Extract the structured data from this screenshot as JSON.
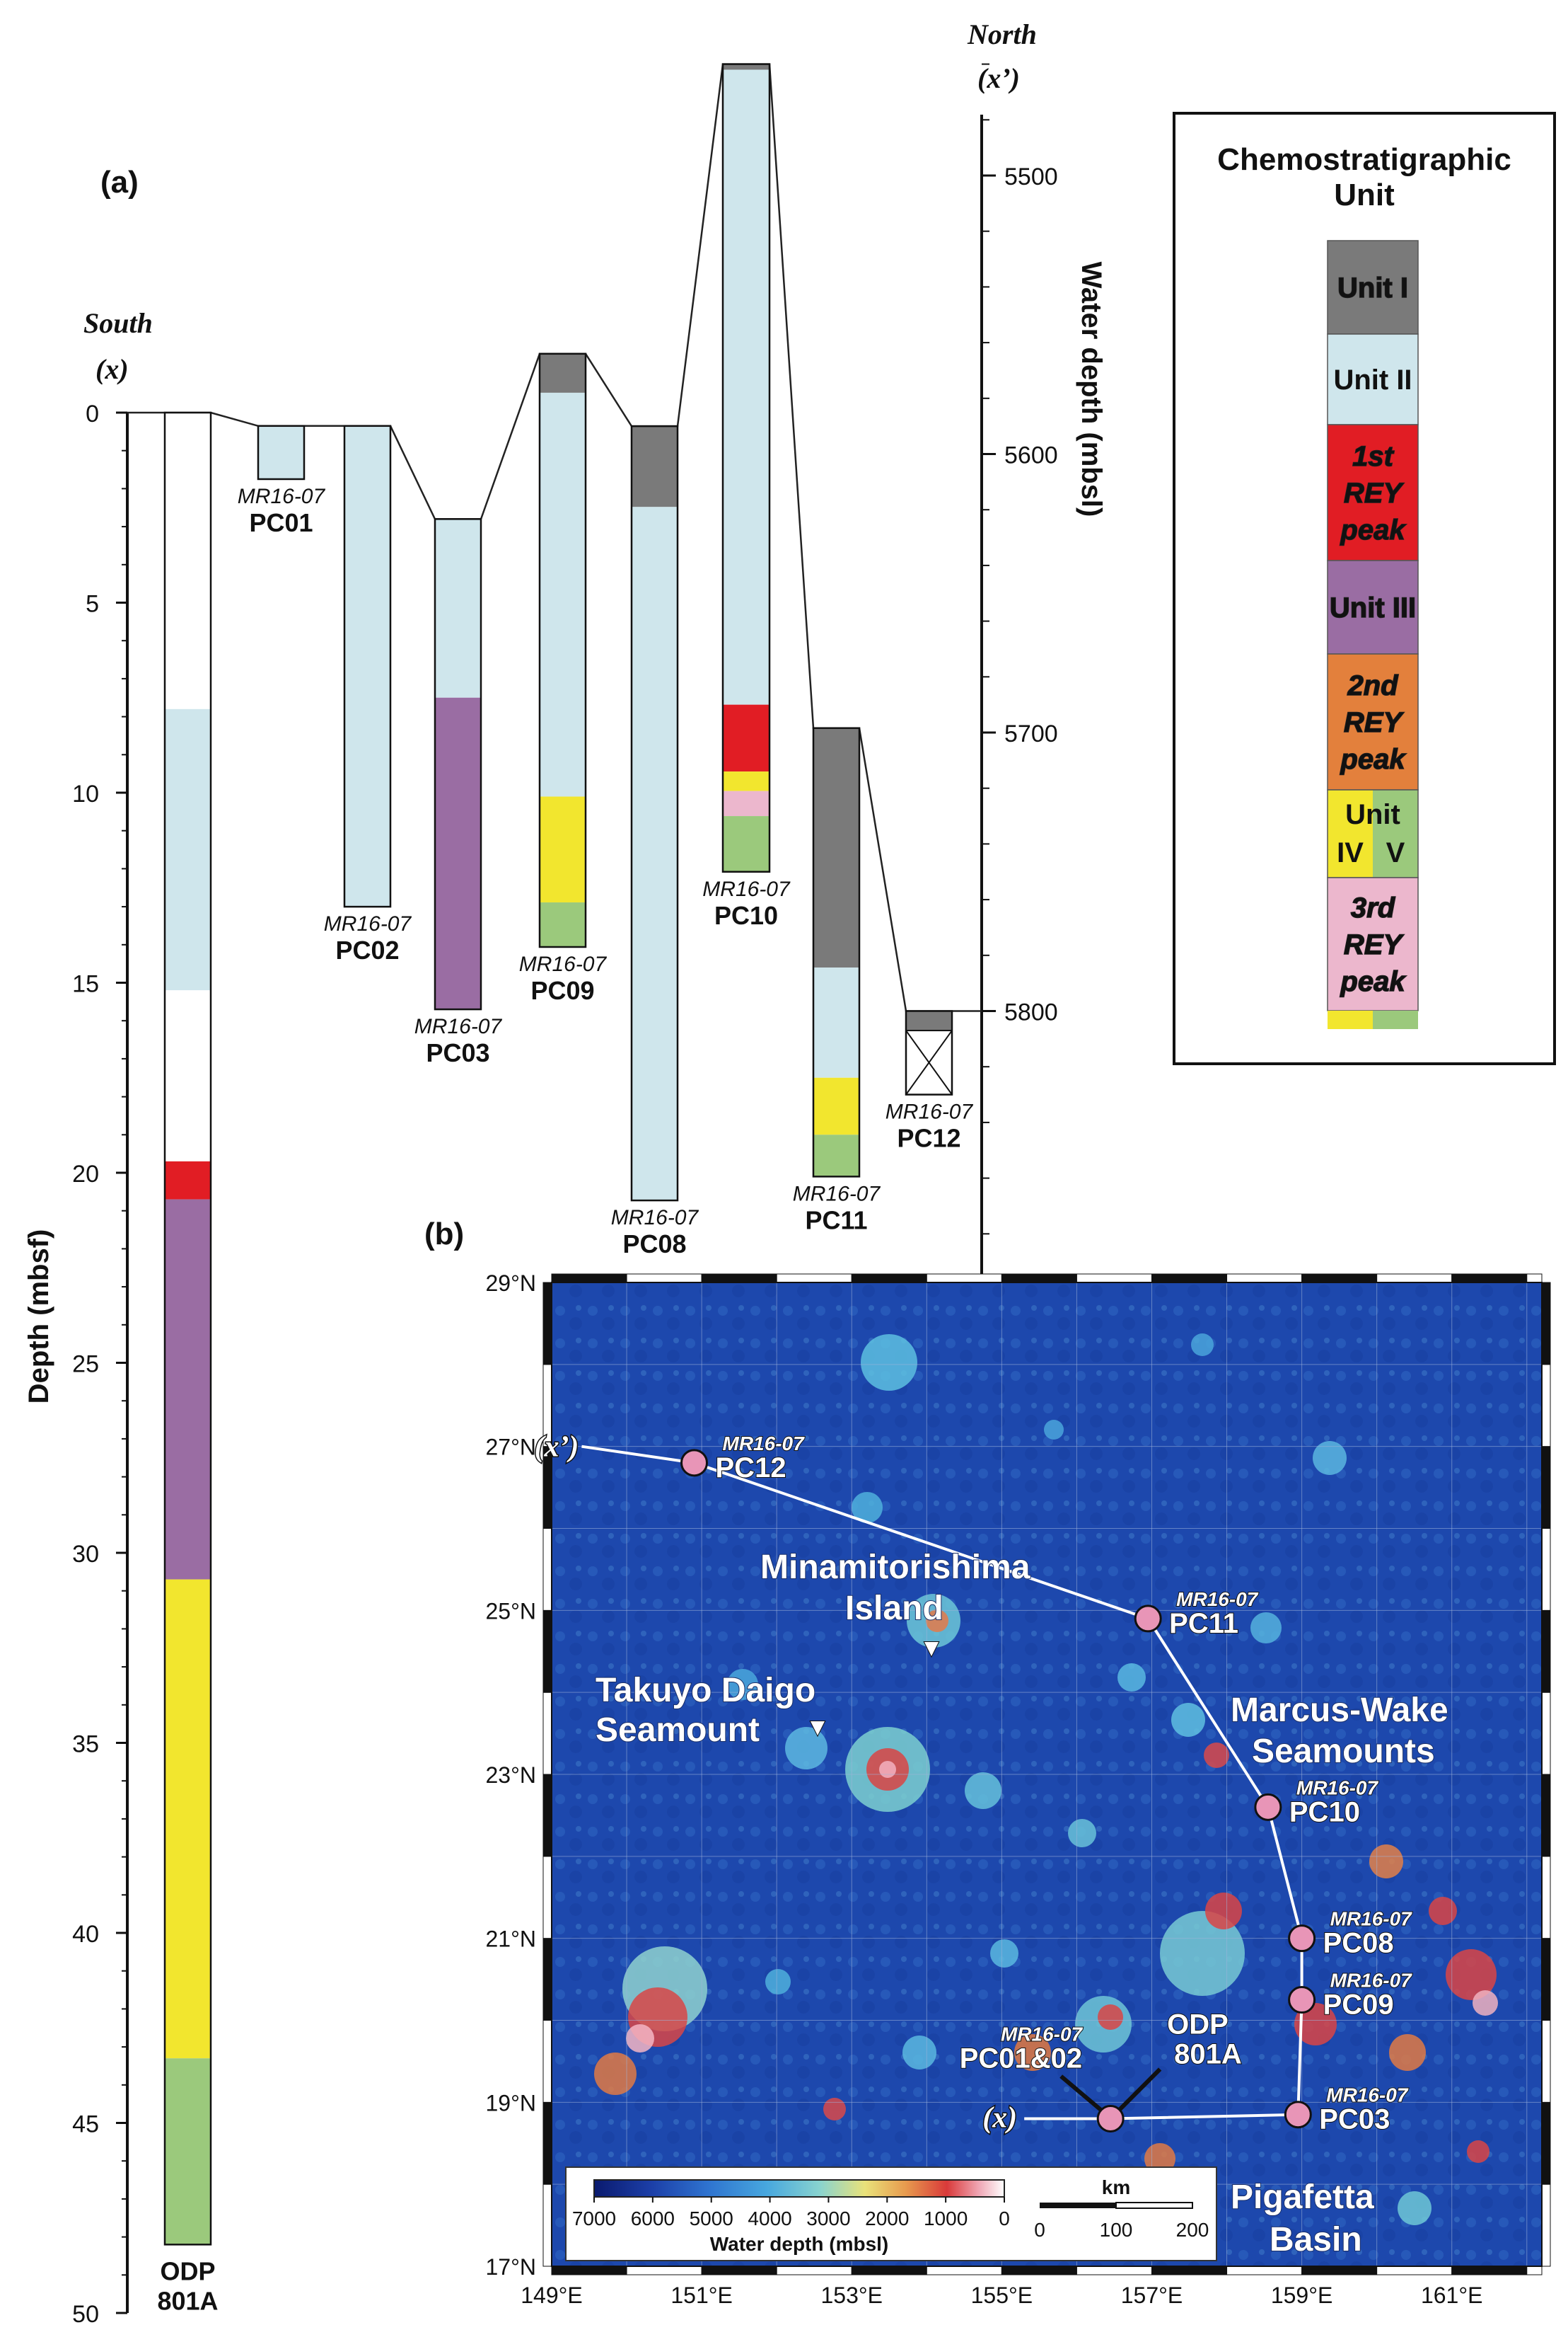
{
  "panel_a": {
    "label": "(a)",
    "south": "South",
    "south_sym": "(x)",
    "north": "North",
    "north_sym": "(x’)",
    "left_axis_title": "Depth (mbsf)",
    "right_axis_title": "Water depth (mbsl)",
    "depth_ticks": [
      "0",
      "5",
      "10",
      "15",
      "20",
      "25",
      "30",
      "35",
      "40",
      "45",
      "50"
    ],
    "water_ticks": [
      "5500",
      "5600",
      "5700",
      "5800",
      "5900"
    ],
    "cruise": "MR16-07",
    "cores": [
      {
        "name": "ODP 801A",
        "name_line1": "ODP",
        "name_line2": "801A",
        "prefix": "",
        "top": 0,
        "bottom": 48.2,
        "units": [
          {
            "unit": "none",
            "from": 0,
            "to": 7.8
          },
          {
            "unit": "II",
            "from": 7.8,
            "to": 15.2
          },
          {
            "unit": "none",
            "from": 15.2,
            "to": 19.7
          },
          {
            "unit": "REY1",
            "from": 19.7,
            "to": 20.7
          },
          {
            "unit": "III",
            "from": 20.7,
            "to": 30.7
          },
          {
            "unit": "IV",
            "from": 30.7,
            "to": 43.3
          },
          {
            "unit": "V",
            "from": 43.3,
            "to": 48.2
          }
        ]
      },
      {
        "name": "PC01",
        "prefix": "MR16-07",
        "top": 0.35,
        "bottom": 1.75,
        "units": [
          {
            "unit": "II",
            "from": 0.35,
            "to": 1.75
          }
        ]
      },
      {
        "name": "PC02",
        "prefix": "MR16-07",
        "top": 0.35,
        "bottom": 13.0,
        "units": [
          {
            "unit": "II",
            "from": 0.35,
            "to": 13.0
          }
        ]
      },
      {
        "name": "PC03",
        "prefix": "MR16-07",
        "top": 2.8,
        "bottom": 15.7,
        "units": [
          {
            "unit": "II",
            "from": 2.8,
            "to": 7.5
          },
          {
            "unit": "III",
            "from": 7.5,
            "to": 15.7
          }
        ]
      },
      {
        "name": "PC09",
        "prefix": "MR16-07",
        "top_mbsl": 5564,
        "bottom_mbsl": 5777,
        "units": [
          {
            "unit": "I",
            "from": 5564,
            "to": 5578
          },
          {
            "unit": "II",
            "from": 5578,
            "to": 5723
          },
          {
            "unit": "IV",
            "from": 5723,
            "to": 5761
          },
          {
            "unit": "V",
            "from": 5761,
            "to": 5777
          }
        ]
      },
      {
        "name": "PC08",
        "prefix": "MR16-07",
        "top_mbsl": 5590,
        "bottom_mbsl": 5868,
        "units": [
          {
            "unit": "I",
            "from": 5590,
            "to": 5619
          },
          {
            "unit": "II",
            "from": 5619,
            "to": 5868
          }
        ]
      },
      {
        "name": "PC10",
        "prefix": "MR16-07",
        "top_mbsl": 5460,
        "bottom_mbsl": 5750,
        "units": [
          {
            "unit": "I",
            "from": 5460,
            "to": 5462
          },
          {
            "unit": "II",
            "from": 5462,
            "to": 5690
          },
          {
            "unit": "REY1",
            "from": 5690,
            "to": 5714
          },
          {
            "unit": "IV",
            "from": 5714,
            "to": 5721
          },
          {
            "unit": "REY3",
            "from": 5721,
            "to": 5730
          },
          {
            "unit": "V",
            "from": 5730,
            "to": 5750
          }
        ]
      },
      {
        "name": "PC11",
        "prefix": "MR16-07",
        "top": 8.3,
        "bottom": 20.1,
        "units": [
          {
            "unit": "I",
            "from": 8.3,
            "to": 14.6
          },
          {
            "unit": "II",
            "from": 14.6,
            "to": 17.5
          },
          {
            "unit": "IV",
            "from": 17.5,
            "to": 19.0
          },
          {
            "unit": "V",
            "from": 19.0,
            "to": 20.1
          }
        ]
      },
      {
        "name": "PC12",
        "prefix": "MR16-07",
        "top_mbsl": 5800,
        "bottom_mbsl": 5830,
        "units": [
          {
            "unit": "I",
            "from": 5800,
            "to": 5807
          },
          {
            "unit": "missing",
            "from": 5807,
            "to": 5830
          }
        ]
      }
    ],
    "legend": {
      "title_line1": "Chemostratigraphic",
      "title_line2": "Unit",
      "items": [
        {
          "unit": "I",
          "lines": [
            "Unit I"
          ],
          "color": "#7a7a7a",
          "italic": false
        },
        {
          "unit": "II",
          "lines": [
            "Unit II"
          ],
          "color": "#cfe6ec",
          "italic": false
        },
        {
          "unit": "REY1",
          "lines": [
            "1st",
            "REY",
            "peak"
          ],
          "color": "#e11d24",
          "italic": true
        },
        {
          "unit": "III",
          "lines": [
            "Unit III"
          ],
          "color": "#9a6da3",
          "italic": false
        },
        {
          "unit": "REY2",
          "lines": [
            "2nd",
            "REY",
            "peak"
          ],
          "color": "#e3803c",
          "italic": true
        },
        {
          "unit": "IV_V",
          "lines": [
            "Unit",
            "IV",
            "V"
          ],
          "color_iv": "#f2e62e",
          "color_v": "#9bc97c",
          "italic": false
        },
        {
          "unit": "REY3",
          "lines": [
            "3rd",
            "REY",
            "peak"
          ],
          "color": "#ecb7cd",
          "italic": true
        }
      ]
    }
  },
  "panel_b": {
    "label": "(b)",
    "lat_ticks": [
      "29°N",
      "27°N",
      "25°N",
      "23°N",
      "21°N",
      "19°N",
      "17°N"
    ],
    "lon_ticks": [
      "149°E",
      "151°E",
      "153°E",
      "155°E",
      "157°E",
      "159°E",
      "161°E"
    ],
    "features": {
      "minamitorishima_1": "Minamitorishima",
      "minamitorishima_2": "Island",
      "takuyo_1": "Takuyo Daigo",
      "takuyo_2": "Seamount",
      "marcus_1": "Marcus-Wake",
      "marcus_2": "Seamounts",
      "pigafetta_1": "Pigafetta",
      "pigafetta_2": "Basin"
    },
    "sites": [
      {
        "prefix": "MR16-07",
        "name": "PC12",
        "lon": 150.9,
        "lat": 26.8
      },
      {
        "prefix": "MR16-07",
        "name": "PC11",
        "lon": 156.95,
        "lat": 24.9
      },
      {
        "prefix": "MR16-07",
        "name": "PC10",
        "lon": 158.55,
        "lat": 22.6
      },
      {
        "prefix": "MR16-07",
        "name": "PC08",
        "lon": 159.0,
        "lat": 21.0
      },
      {
        "prefix": "MR16-07",
        "name": "PC09",
        "lon": 159.0,
        "lat": 20.25
      },
      {
        "prefix": "MR16-07",
        "name": "PC03",
        "lon": 158.95,
        "lat": 18.85
      },
      {
        "prefix": "MR16-07",
        "name": "PC01&02",
        "lon": 156.45,
        "lat": 18.8
      }
    ],
    "odp_label_1": "ODP",
    "odp_label_2": "801A",
    "x_label": "(x)",
    "xp_label": "(x’)",
    "colorbar": {
      "ticks": [
        "7000",
        "6000",
        "5000",
        "4000",
        "3000",
        "2000",
        "1000",
        "0"
      ],
      "title": "Water depth (mbsl)"
    },
    "scalebar": {
      "unit": "km",
      "ticks": [
        "0",
        "100",
        "200"
      ]
    }
  }
}
